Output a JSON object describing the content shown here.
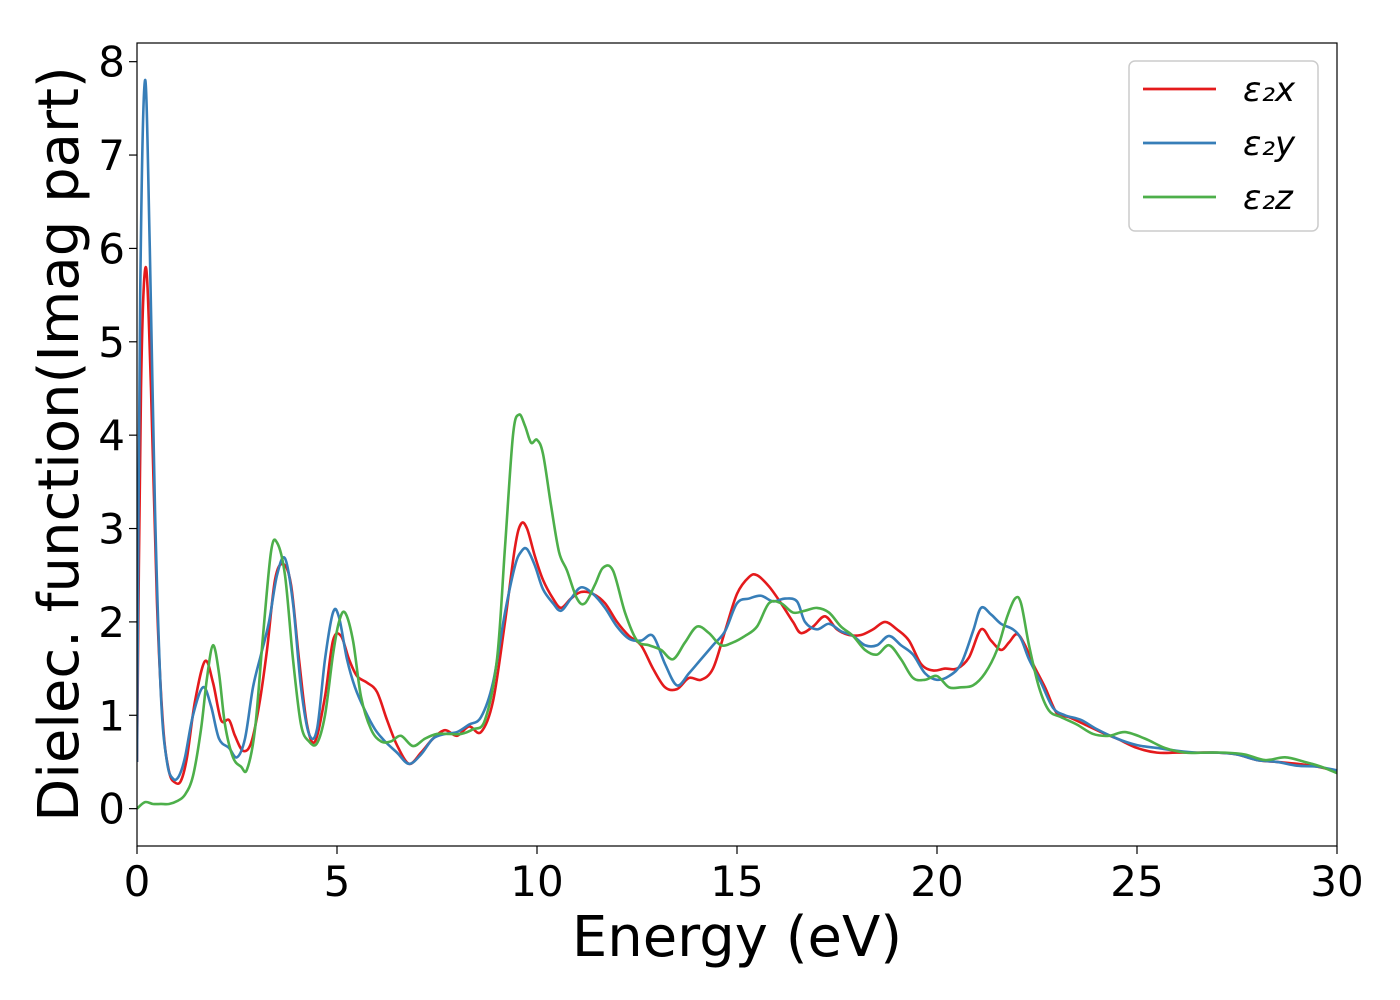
{
  "chart_data": {
    "type": "line",
    "title": "",
    "xlabel": "Energy (eV)",
    "ylabel": "Dielec. function(Imag part)",
    "xlim": [
      0,
      30
    ],
    "ylim": [
      -0.4,
      8.2
    ],
    "xticks": [
      0,
      5,
      10,
      15,
      20,
      25,
      30
    ],
    "yticks": [
      0,
      1,
      2,
      3,
      4,
      5,
      6,
      7,
      8
    ],
    "xtick_labels": [
      "0",
      "5",
      "10",
      "15",
      "20",
      "25",
      "30"
    ],
    "ytick_labels": [
      "0",
      "1",
      "2",
      "3",
      "4",
      "5",
      "6",
      "7",
      "8"
    ],
    "grid": false,
    "legend_position": "top-right",
    "series": [
      {
        "name": "ε₂x",
        "color": "#e41a1c",
        "x": [
          0,
          0.1,
          0.22,
          0.35,
          0.5,
          0.65,
          0.8,
          0.95,
          1.1,
          1.25,
          1.45,
          1.7,
          1.9,
          2.1,
          2.3,
          2.45,
          2.65,
          2.85,
          3.05,
          3.25,
          3.45,
          3.65,
          3.85,
          4.05,
          4.25,
          4.45,
          4.7,
          4.9,
          5.1,
          5.3,
          5.5,
          5.75,
          6.0,
          6.25,
          6.5,
          6.8,
          7.1,
          7.4,
          7.7,
          8.0,
          8.3,
          8.6,
          8.9,
          9.2,
          9.45,
          9.6,
          9.75,
          9.95,
          10.15,
          10.4,
          10.6,
          10.85,
          11.1,
          11.4,
          11.7,
          12.0,
          12.3,
          12.6,
          12.9,
          13.2,
          13.5,
          13.8,
          14.1,
          14.4,
          14.7,
          15.0,
          15.3,
          15.5,
          15.8,
          16.1,
          16.4,
          16.6,
          16.9,
          17.2,
          17.5,
          17.8,
          18.1,
          18.4,
          18.7,
          19.0,
          19.3,
          19.6,
          19.9,
          20.2,
          20.5,
          20.8,
          21.1,
          21.35,
          21.6,
          21.8,
          22.0,
          22.2,
          22.4,
          22.7,
          23.0,
          23.3,
          23.7,
          24.1,
          24.5,
          25.0,
          25.5,
          26.0,
          26.5,
          27.0,
          27.5,
          28.0,
          28.5,
          29.0,
          29.5,
          30.0
        ],
        "y": [
          0.5,
          4.5,
          5.8,
          4.5,
          2.2,
          0.9,
          0.4,
          0.28,
          0.3,
          0.55,
          1.15,
          1.58,
          1.35,
          0.95,
          0.95,
          0.78,
          0.62,
          0.7,
          1.1,
          1.7,
          2.45,
          2.62,
          2.4,
          1.6,
          0.9,
          0.72,
          1.2,
          1.8,
          1.85,
          1.6,
          1.42,
          1.35,
          1.25,
          0.95,
          0.68,
          0.48,
          0.6,
          0.75,
          0.84,
          0.78,
          0.88,
          0.82,
          1.15,
          2.0,
          2.8,
          3.05,
          3.0,
          2.7,
          2.45,
          2.25,
          2.15,
          2.25,
          2.32,
          2.3,
          2.2,
          2.0,
          1.85,
          1.75,
          1.5,
          1.3,
          1.28,
          1.4,
          1.38,
          1.5,
          1.9,
          2.3,
          2.48,
          2.5,
          2.38,
          2.2,
          2.0,
          1.88,
          1.95,
          2.06,
          1.92,
          1.86,
          1.86,
          1.92,
          2.0,
          1.92,
          1.8,
          1.55,
          1.48,
          1.5,
          1.5,
          1.62,
          1.92,
          1.8,
          1.7,
          1.78,
          1.87,
          1.75,
          1.55,
          1.3,
          1.02,
          0.98,
          0.9,
          0.82,
          0.75,
          0.65,
          0.6,
          0.6,
          0.6,
          0.6,
          0.58,
          0.52,
          0.5,
          0.48,
          0.45,
          0.4
        ]
      },
      {
        "name": "ε₂y",
        "color": "#377eb8",
        "x": [
          0,
          0.08,
          0.2,
          0.32,
          0.45,
          0.6,
          0.75,
          0.9,
          1.05,
          1.2,
          1.4,
          1.65,
          1.85,
          2.05,
          2.3,
          2.5,
          2.7,
          2.9,
          3.1,
          3.3,
          3.5,
          3.7,
          3.9,
          4.1,
          4.3,
          4.5,
          4.7,
          4.9,
          5.05,
          5.25,
          5.45,
          5.7,
          5.95,
          6.2,
          6.5,
          6.8,
          7.1,
          7.4,
          7.7,
          8.0,
          8.3,
          8.6,
          8.9,
          9.2,
          9.45,
          9.6,
          9.75,
          9.95,
          10.15,
          10.4,
          10.6,
          10.85,
          11.1,
          11.4,
          11.7,
          12.0,
          12.3,
          12.6,
          12.9,
          13.2,
          13.5,
          13.8,
          14.1,
          14.4,
          14.7,
          15.0,
          15.3,
          15.6,
          15.9,
          16.2,
          16.5,
          16.7,
          17.0,
          17.3,
          17.6,
          17.9,
          18.2,
          18.5,
          18.8,
          19.1,
          19.4,
          19.7,
          20.0,
          20.3,
          20.6,
          20.9,
          21.1,
          21.35,
          21.6,
          21.9,
          22.1,
          22.3,
          22.6,
          22.9,
          23.2,
          23.6,
          24.0,
          24.5,
          25.0,
          25.5,
          26.0,
          26.5,
          27.0,
          27.5,
          28.0,
          28.5,
          29.0,
          29.5,
          30.0
        ],
        "y": [
          0.5,
          5.5,
          7.8,
          6.0,
          3.2,
          1.2,
          0.5,
          0.32,
          0.35,
          0.55,
          1.0,
          1.3,
          1.1,
          0.75,
          0.65,
          0.55,
          0.75,
          1.3,
          1.65,
          2.0,
          2.5,
          2.68,
          2.2,
          1.3,
          0.8,
          0.85,
          1.6,
          2.1,
          2.05,
          1.6,
          1.3,
          1.05,
          0.85,
          0.72,
          0.6,
          0.48,
          0.58,
          0.75,
          0.8,
          0.82,
          0.9,
          0.98,
          1.35,
          2.1,
          2.6,
          2.75,
          2.78,
          2.6,
          2.35,
          2.2,
          2.12,
          2.25,
          2.37,
          2.3,
          2.15,
          1.95,
          1.82,
          1.8,
          1.85,
          1.55,
          1.32,
          1.45,
          1.6,
          1.75,
          1.9,
          2.2,
          2.25,
          2.28,
          2.22,
          2.25,
          2.22,
          2.0,
          1.92,
          1.98,
          1.9,
          1.85,
          1.75,
          1.75,
          1.85,
          1.75,
          1.65,
          1.45,
          1.38,
          1.42,
          1.55,
          1.9,
          2.15,
          2.08,
          1.98,
          1.92,
          1.82,
          1.6,
          1.35,
          1.08,
          1.0,
          0.95,
          0.85,
          0.75,
          0.68,
          0.65,
          0.62,
          0.6,
          0.6,
          0.58,
          0.52,
          0.5,
          0.46,
          0.45,
          0.41
        ]
      },
      {
        "name": "ε₂z",
        "color": "#4daf4a",
        "x": [
          0,
          0.2,
          0.4,
          0.6,
          0.8,
          1.0,
          1.2,
          1.4,
          1.6,
          1.75,
          1.9,
          2.05,
          2.2,
          2.4,
          2.6,
          2.75,
          2.95,
          3.15,
          3.35,
          3.5,
          3.7,
          3.9,
          4.1,
          4.3,
          4.5,
          4.7,
          4.9,
          5.05,
          5.2,
          5.4,
          5.6,
          5.85,
          6.1,
          6.35,
          6.6,
          6.9,
          7.2,
          7.5,
          7.8,
          8.1,
          8.4,
          8.7,
          9.0,
          9.2,
          9.4,
          9.55,
          9.7,
          9.85,
          10.0,
          10.15,
          10.35,
          10.55,
          10.75,
          11.0,
          11.2,
          11.45,
          11.65,
          11.9,
          12.2,
          12.5,
          12.8,
          13.1,
          13.4,
          13.7,
          14.0,
          14.3,
          14.6,
          14.9,
          15.2,
          15.5,
          15.8,
          16.1,
          16.4,
          16.7,
          17.0,
          17.3,
          17.6,
          17.9,
          18.2,
          18.5,
          18.8,
          19.1,
          19.4,
          19.7,
          20.0,
          20.3,
          20.6,
          20.9,
          21.2,
          21.5,
          21.75,
          21.95,
          22.1,
          22.3,
          22.55,
          22.8,
          23.1,
          23.5,
          23.9,
          24.3,
          24.7,
          25.2,
          25.7,
          26.2,
          26.7,
          27.2,
          27.7,
          28.2,
          28.7,
          29.2,
          29.6,
          30.0
        ],
        "y": [
          0.0,
          0.07,
          0.05,
          0.05,
          0.05,
          0.08,
          0.15,
          0.35,
          0.85,
          1.4,
          1.75,
          1.45,
          0.9,
          0.55,
          0.45,
          0.42,
          0.85,
          1.85,
          2.75,
          2.85,
          2.5,
          1.6,
          0.9,
          0.72,
          0.7,
          1.0,
          1.65,
          2.0,
          2.1,
          1.8,
          1.2,
          0.85,
          0.72,
          0.72,
          0.78,
          0.67,
          0.75,
          0.8,
          0.8,
          0.8,
          0.85,
          0.95,
          1.6,
          2.8,
          4.0,
          4.22,
          4.1,
          3.92,
          3.95,
          3.8,
          3.25,
          2.75,
          2.55,
          2.25,
          2.2,
          2.4,
          2.58,
          2.55,
          2.1,
          1.8,
          1.75,
          1.7,
          1.6,
          1.78,
          1.95,
          1.88,
          1.75,
          1.78,
          1.85,
          1.95,
          2.2,
          2.2,
          2.1,
          2.12,
          2.15,
          2.1,
          1.95,
          1.85,
          1.7,
          1.65,
          1.75,
          1.6,
          1.4,
          1.38,
          1.42,
          1.3,
          1.3,
          1.32,
          1.45,
          1.7,
          2.05,
          2.25,
          2.2,
          1.75,
          1.3,
          1.05,
          0.98,
          0.9,
          0.8,
          0.78,
          0.82,
          0.75,
          0.65,
          0.6,
          0.6,
          0.6,
          0.58,
          0.52,
          0.55,
          0.5,
          0.45,
          0.38
        ]
      }
    ]
  }
}
